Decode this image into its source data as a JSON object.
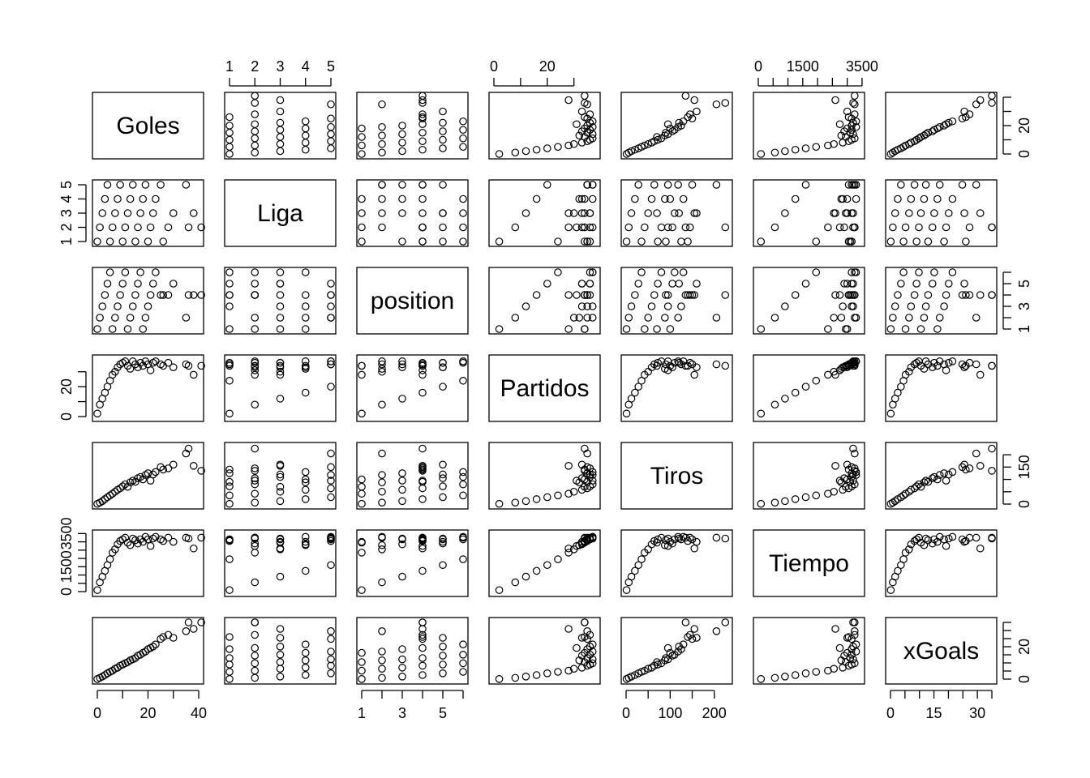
{
  "chart_data": {
    "type": "scatter",
    "subtype": "scatterplot-matrix",
    "grid": false,
    "variables": [
      {
        "name": "Goles",
        "range": [
          0,
          40
        ],
        "ticks": [
          0,
          10,
          20,
          30,
          40
        ],
        "labels": [
          "0",
          "",
          "20",
          "",
          "40"
        ]
      },
      {
        "name": "Liga",
        "range": [
          1,
          5
        ],
        "ticks": [
          1,
          2,
          3,
          4,
          5
        ],
        "labels": [
          "1",
          "2",
          "3",
          "4",
          "5"
        ]
      },
      {
        "name": "position",
        "range": [
          1,
          6
        ],
        "ticks": [
          1,
          2,
          3,
          4,
          5,
          6
        ],
        "labels": [
          "1",
          "",
          "3",
          "",
          "5",
          ""
        ]
      },
      {
        "name": "Partidos",
        "range": [
          0,
          38
        ],
        "ticks": [
          0,
          10,
          20,
          30
        ],
        "labels": [
          "0",
          "",
          "20",
          ""
        ]
      },
      {
        "name": "Tiros",
        "range": [
          0,
          230
        ],
        "ticks": [
          0,
          50,
          100,
          150,
          200
        ],
        "labels": [
          "0",
          "",
          "100",
          "",
          "200"
        ]
      },
      {
        "name": "Tiempo",
        "range": [
          0,
          3420
        ],
        "ticks": [
          0,
          500,
          1000,
          1500,
          2000,
          2500,
          3000,
          3500
        ],
        "labels": [
          "0",
          "",
          "",
          "1500",
          "",
          "",
          "",
          "3500"
        ]
      },
      {
        "name": "xGoals",
        "range": [
          0,
          35
        ],
        "ticks": [
          0,
          5,
          10,
          15,
          20,
          25,
          30,
          35
        ],
        "labels": [
          "0",
          "",
          "",
          "15",
          "",
          "",
          "30",
          ""
        ]
      }
    ],
    "axis_labels": {
      "top": [
        {
          "col": 1,
          "var": 1
        },
        {
          "col": 3,
          "var": 3
        },
        {
          "col": 5,
          "var": 5
        }
      ],
      "bottom": [
        {
          "col": 0,
          "var": 0
        },
        {
          "col": 2,
          "var": 2
        },
        {
          "col": 4,
          "var": 4
        },
        {
          "col": 6,
          "var": 6
        }
      ],
      "left": [
        {
          "row": 1,
          "var": 1
        },
        {
          "row": 3,
          "var": 3
        },
        {
          "row": 5,
          "var": 5
        }
      ],
      "right": [
        {
          "row": 0,
          "var": 0,
          "ticks": [
            0,
            10,
            20,
            30,
            40
          ],
          "labels": [
            "0",
            "",
            "20",
            "",
            ""
          ]
        },
        {
          "row": 2,
          "var": 2,
          "ticks": [
            1,
            2,
            3,
            4,
            5,
            6
          ],
          "labels": [
            "1",
            "",
            "3",
            "",
            "5",
            ""
          ]
        },
        {
          "row": 4,
          "var": 4,
          "ticks": [
            0,
            50,
            100,
            150,
            200
          ],
          "labels": [
            "0",
            "",
            "",
            "150",
            ""
          ]
        },
        {
          "row": 6,
          "var": 6,
          "ticks": [
            0,
            5,
            10,
            15,
            20,
            25,
            30,
            35
          ],
          "labels": [
            "0",
            "",
            "",
            "",
            "20",
            "",
            "",
            ""
          ]
        }
      ]
    },
    "observations": [
      {
        "Goles": 0,
        "Liga": 1,
        "position": 1,
        "Partidos": 2,
        "Tiros": 1,
        "Tiempo": 90,
        "xGoals": 0.1
      },
      {
        "Goles": 1,
        "Liga": 2,
        "position": 2,
        "Partidos": 8,
        "Tiros": 6,
        "Tiempo": 560,
        "xGoals": 0.8
      },
      {
        "Goles": 2,
        "Liga": 3,
        "position": 3,
        "Partidos": 12,
        "Tiros": 12,
        "Tiempo": 900,
        "xGoals": 1.6
      },
      {
        "Goles": 3,
        "Liga": 4,
        "position": 4,
        "Partidos": 16,
        "Tiros": 20,
        "Tiempo": 1250,
        "xGoals": 2.5
      },
      {
        "Goles": 4,
        "Liga": 5,
        "position": 5,
        "Partidos": 20,
        "Tiros": 28,
        "Tiempo": 1600,
        "xGoals": 3.6
      },
      {
        "Goles": 5,
        "Liga": 1,
        "position": 6,
        "Partidos": 24,
        "Tiros": 35,
        "Tiempo": 1950,
        "xGoals": 4.5
      },
      {
        "Goles": 6,
        "Liga": 2,
        "position": 1,
        "Partidos": 28,
        "Tiros": 42,
        "Tiempo": 2350,
        "xGoals": 5.2
      },
      {
        "Goles": 7,
        "Liga": 3,
        "position": 2,
        "Partidos": 30,
        "Tiros": 50,
        "Tiempo": 2550,
        "xGoals": 6.4
      },
      {
        "Goles": 8,
        "Liga": 4,
        "position": 3,
        "Partidos": 33,
        "Tiros": 58,
        "Tiempo": 2850,
        "xGoals": 7.1
      },
      {
        "Goles": 9,
        "Liga": 5,
        "position": 4,
        "Partidos": 35,
        "Tiros": 64,
        "Tiempo": 3050,
        "xGoals": 8.3
      },
      {
        "Goles": 10,
        "Liga": 1,
        "position": 5,
        "Partidos": 36,
        "Tiros": 72,
        "Tiempo": 3150,
        "xGoals": 9.0
      },
      {
        "Goles": 11,
        "Liga": 2,
        "position": 6,
        "Partidos": 37,
        "Tiros": 80,
        "Tiempo": 3250,
        "xGoals": 9.8
      },
      {
        "Goles": 12,
        "Liga": 3,
        "position": 1,
        "Partidos": 34,
        "Tiros": 70,
        "Tiempo": 2950,
        "xGoals": 10.5
      },
      {
        "Goles": 13,
        "Liga": 4,
        "position": 2,
        "Partidos": 32,
        "Tiros": 88,
        "Tiempo": 2800,
        "xGoals": 11.6
      },
      {
        "Goles": 14,
        "Liga": 5,
        "position": 3,
        "Partidos": 37,
        "Tiros": 95,
        "Tiempo": 3200,
        "xGoals": 12.2
      },
      {
        "Goles": 15,
        "Liga": 1,
        "position": 4,
        "Partidos": 35,
        "Tiros": 90,
        "Tiempo": 3100,
        "xGoals": 13.0
      },
      {
        "Goles": 16,
        "Liga": 2,
        "position": 5,
        "Partidos": 33,
        "Tiros": 105,
        "Tiempo": 2900,
        "xGoals": 14.5
      },
      {
        "Goles": 17,
        "Liga": 3,
        "position": 6,
        "Partidos": 36,
        "Tiros": 110,
        "Tiempo": 3150,
        "xGoals": 15.1
      },
      {
        "Goles": 18,
        "Liga": 4,
        "position": 1,
        "Partidos": 34,
        "Tiros": 100,
        "Tiempo": 3000,
        "xGoals": 16.2
      },
      {
        "Goles": 19,
        "Liga": 5,
        "position": 2,
        "Partidos": 37,
        "Tiros": 118,
        "Tiempo": 3300,
        "xGoals": 17.0
      },
      {
        "Goles": 20,
        "Liga": 1,
        "position": 3,
        "Partidos": 35,
        "Tiros": 125,
        "Tiempo": 3150,
        "xGoals": 18.5
      },
      {
        "Goles": 21,
        "Liga": 2,
        "position": 4,
        "Partidos": 31,
        "Tiros": 95,
        "Tiempo": 2750,
        "xGoals": 19.2
      },
      {
        "Goles": 22,
        "Liga": 3,
        "position": 5,
        "Partidos": 36,
        "Tiros": 120,
        "Tiempo": 3200,
        "xGoals": 20.1
      },
      {
        "Goles": 23,
        "Liga": 4,
        "position": 6,
        "Partidos": 37,
        "Tiros": 130,
        "Tiempo": 3300,
        "xGoals": 21.4
      },
      {
        "Goles": 25,
        "Liga": 5,
        "position": 4,
        "Partidos": 35,
        "Tiros": 150,
        "Tiempo": 3150,
        "xGoals": 24.8
      },
      {
        "Goles": 26,
        "Liga": 1,
        "position": 4,
        "Partidos": 34,
        "Tiros": 140,
        "Tiempo": 3050,
        "xGoals": 26.0
      },
      {
        "Goles": 28,
        "Liga": 2,
        "position": 4,
        "Partidos": 36,
        "Tiros": 145,
        "Tiempo": 3250,
        "xGoals": 27.3
      },
      {
        "Goles": 30,
        "Liga": 3,
        "position": 5,
        "Partidos": 33,
        "Tiros": 160,
        "Tiempo": 3000,
        "xGoals": 25.5
      },
      {
        "Goles": 35,
        "Liga": 5,
        "position": 2,
        "Partidos": 35,
        "Tiros": 205,
        "Tiempo": 3250,
        "xGoals": 29.6
      },
      {
        "Goles": 36,
        "Liga": 2,
        "position": 4,
        "Partidos": 34,
        "Tiros": 225,
        "Tiempo": 3200,
        "xGoals": 35.0
      },
      {
        "Goles": 38,
        "Liga": 3,
        "position": 4,
        "Partidos": 28,
        "Tiros": 155,
        "Tiempo": 2600,
        "xGoals": 31.0
      },
      {
        "Goles": 41,
        "Liga": 2,
        "position": 4,
        "Partidos": 34,
        "Tiros": 135,
        "Tiempo": 3250,
        "xGoals": 35.0
      }
    ]
  }
}
